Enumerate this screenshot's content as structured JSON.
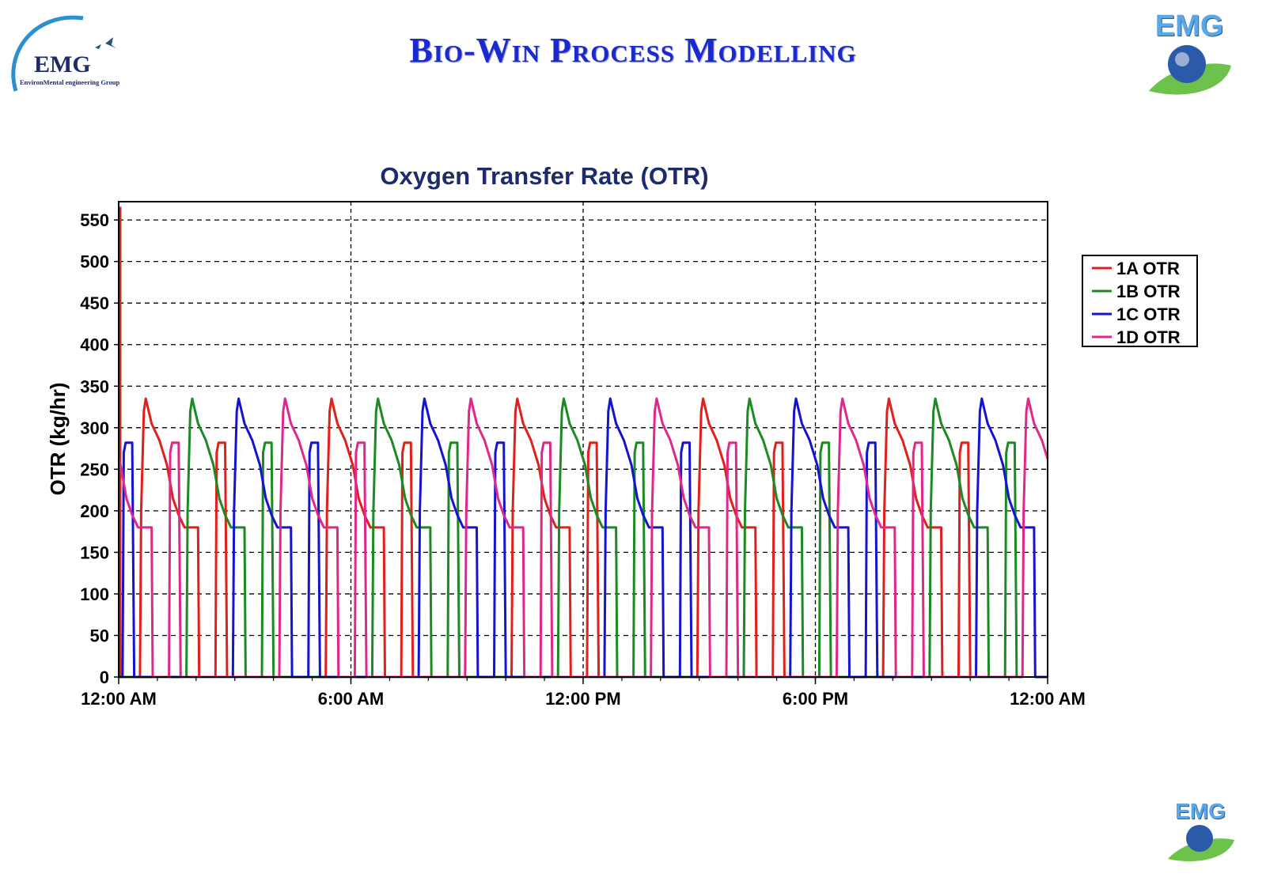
{
  "header": {
    "title": "Bio-Win Process Modelling",
    "logo_left_text": "EMG",
    "logo_left_subtitle": "EnvironMental engineering Group",
    "logo_right_text": "EMG",
    "logo_footer_text": "EMG"
  },
  "colors": {
    "title": "#1a2ad0",
    "1A": "#e0201c",
    "1B": "#1c8a22",
    "1C": "#1414d0",
    "1D": "#e0288a"
  },
  "chart_data": {
    "type": "line",
    "title": "Oxygen Transfer Rate (OTR)",
    "xlabel": "",
    "ylabel": "OTR (kg/hr)",
    "xlim_hours": [
      0,
      24
    ],
    "ylim": [
      0,
      572
    ],
    "x_ticks": [
      {
        "h": 0,
        "label": "12:00 AM"
      },
      {
        "h": 6,
        "label": "6:00 AM"
      },
      {
        "h": 12,
        "label": "12:00 PM"
      },
      {
        "h": 18,
        "label": "6:00 PM"
      },
      {
        "h": 24,
        "label": "12:00 AM"
      }
    ],
    "y_ticks": [
      0,
      50,
      100,
      150,
      200,
      250,
      300,
      350,
      400,
      450,
      500,
      550
    ],
    "grid": true,
    "legend_position": "right",
    "cycle_period_hours": 4.8,
    "cycle_profile": [
      [
        0,
        0
      ],
      [
        0.03,
        200
      ],
      [
        0.1,
        320
      ],
      [
        0.15,
        335
      ],
      [
        0.3,
        305
      ],
      [
        0.5,
        285
      ],
      [
        0.7,
        255
      ],
      [
        0.85,
        215
      ],
      [
        1.0,
        195
      ],
      [
        1.15,
        180
      ],
      [
        1.5,
        180
      ],
      [
        1.53,
        0
      ],
      [
        1.95,
        0
      ],
      [
        1.98,
        270
      ],
      [
        2.03,
        282
      ],
      [
        2.2,
        282
      ],
      [
        2.25,
        0
      ]
    ],
    "series": [
      {
        "name": "1A OTR",
        "color": "#e0201c",
        "cycle_starts": [
          -4.25,
          0.55,
          5.35,
          10.15,
          14.95,
          19.75
        ],
        "spike": [
          [
            0,
            0
          ],
          [
            0,
            565
          ],
          [
            0.05,
            565
          ],
          [
            0.05,
            0
          ]
        ]
      },
      {
        "name": "1B OTR",
        "color": "#1c8a22",
        "cycle_starts": [
          -3.05,
          1.75,
          6.55,
          11.35,
          16.15,
          20.95
        ]
      },
      {
        "name": "1C OTR",
        "color": "#1414d0",
        "cycle_starts": [
          -1.85,
          2.95,
          7.75,
          12.55,
          17.35,
          22.15
        ]
      },
      {
        "name": "1D OTR",
        "color": "#e0288a",
        "cycle_starts": [
          -0.65,
          4.15,
          8.95,
          13.75,
          18.55,
          23.35
        ]
      }
    ]
  }
}
